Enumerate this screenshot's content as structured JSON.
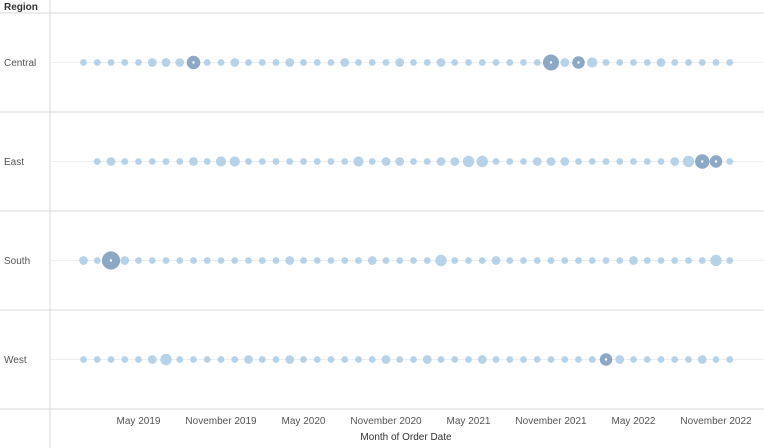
{
  "chart_data": {
    "type": "scatter",
    "row_header": "Region",
    "xlabel": "Month of Order Date",
    "x_tick_labels": [
      "May 2019",
      "November 2019",
      "May 2020",
      "November 2020",
      "May 2021",
      "November 2021",
      "May 2022",
      "November 2022"
    ],
    "x_tick_months": [
      "2019-05",
      "2019-11",
      "2020-05",
      "2020-11",
      "2021-05",
      "2021-11",
      "2022-05",
      "2022-11"
    ],
    "x_start": "2019-01",
    "x_end": "2022-12",
    "grid": true,
    "colors": {
      "mark": "#a9cbe6",
      "mark_large": "#7f9fbe",
      "center": "#ffffff",
      "rule": "#d9d9d9"
    },
    "size_legend": "none",
    "series": [
      {
        "name": "Central",
        "values": [
          1,
          1,
          1,
          1,
          1,
          2,
          2,
          2,
          6,
          1,
          1,
          2,
          1,
          1,
          1,
          2,
          1,
          1,
          1,
          2,
          1,
          1,
          1,
          2,
          1,
          1,
          2,
          1,
          1,
          1,
          1,
          1,
          1,
          1,
          9,
          2,
          5,
          3,
          1,
          1,
          1,
          1,
          2,
          1,
          1,
          1,
          1,
          1
        ]
      },
      {
        "name": "East",
        "values": [
          0,
          1,
          2,
          1,
          1,
          1,
          1,
          1,
          2,
          1,
          3,
          3,
          1,
          1,
          1,
          1,
          1,
          1,
          1,
          1,
          3,
          1,
          2,
          2,
          1,
          1,
          2,
          2,
          4,
          4,
          1,
          1,
          1,
          2,
          2,
          2,
          1,
          1,
          1,
          1,
          1,
          1,
          1,
          2,
          4,
          7,
          5,
          1
        ]
      },
      {
        "name": "South",
        "values": [
          2,
          1,
          12,
          2,
          1,
          1,
          1,
          1,
          1,
          1,
          1,
          1,
          1,
          1,
          1,
          2,
          1,
          1,
          1,
          1,
          1,
          2,
          1,
          1,
          1,
          1,
          4,
          1,
          1,
          1,
          2,
          1,
          1,
          1,
          1,
          1,
          1,
          1,
          1,
          1,
          2,
          1,
          1,
          1,
          1,
          1,
          4,
          1
        ]
      },
      {
        "name": "West",
        "values": [
          1,
          1,
          1,
          1,
          1,
          2,
          4,
          1,
          1,
          1,
          1,
          1,
          2,
          1,
          1,
          2,
          1,
          1,
          1,
          1,
          1,
          1,
          2,
          1,
          1,
          2,
          1,
          1,
          1,
          2,
          1,
          1,
          1,
          1,
          1,
          1,
          1,
          1,
          5,
          2,
          1,
          1,
          1,
          1,
          1,
          2,
          1,
          1
        ]
      }
    ]
  }
}
